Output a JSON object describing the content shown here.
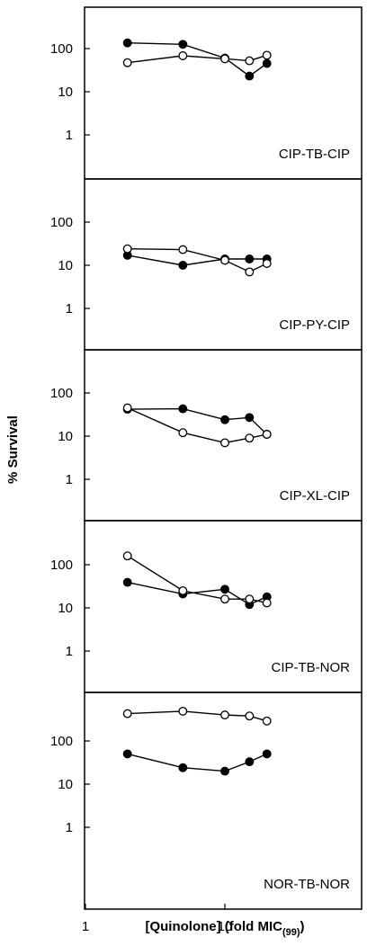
{
  "figure": {
    "ylabel": "% Survival",
    "xlabel_main": "[Quinolone] (fold MIC",
    "xlabel_sub": "(99)",
    "xlabel_close": ")",
    "x_ticks": [
      "1",
      "10"
    ],
    "y_ticks": [
      "1",
      "10",
      "100"
    ],
    "x_scale": "log",
    "y_scale": "log"
  },
  "chart_data": [
    {
      "type": "line",
      "label": "CIP-TB-CIP",
      "xlim": [
        1,
        50
      ],
      "ylim": [
        0.25,
        500
      ],
      "series": [
        {
          "marker": "filled",
          "x": [
            2,
            5,
            10,
            15,
            20
          ],
          "y": [
            135,
            125,
            60,
            23,
            45
          ]
        },
        {
          "marker": "open",
          "x": [
            2,
            5,
            10,
            15,
            20
          ],
          "y": [
            47,
            68,
            58,
            52,
            70
          ]
        }
      ]
    },
    {
      "type": "line",
      "label": "CIP-PY-CIP",
      "xlim": [
        1,
        50
      ],
      "ylim": [
        0.25,
        500
      ],
      "series": [
        {
          "marker": "filled",
          "x": [
            2,
            5,
            10,
            15,
            20
          ],
          "y": [
            17,
            10,
            14,
            14,
            14
          ]
        },
        {
          "marker": "open",
          "x": [
            2,
            5,
            10,
            15,
            20
          ],
          "y": [
            24,
            23,
            13,
            7,
            11
          ]
        }
      ]
    },
    {
      "type": "line",
      "label": "CIP-XL-CIP",
      "xlim": [
        1,
        50
      ],
      "ylim": [
        0.25,
        500
      ],
      "series": [
        {
          "marker": "filled",
          "x": [
            2,
            5,
            10,
            15,
            20
          ],
          "y": [
            42,
            43,
            24,
            27,
            11
          ]
        },
        {
          "marker": "open",
          "x": [
            2,
            5,
            10,
            15,
            20
          ],
          "y": [
            45,
            12,
            7,
            9,
            11
          ]
        }
      ]
    },
    {
      "type": "line",
      "label": "CIP-TB-NOR",
      "xlim": [
        1,
        50
      ],
      "ylim": [
        0.25,
        500
      ],
      "series": [
        {
          "marker": "filled",
          "x": [
            2,
            5,
            10,
            15,
            20
          ],
          "y": [
            39,
            21,
            27,
            12,
            18
          ]
        },
        {
          "marker": "open",
          "x": [
            2,
            5,
            10,
            15,
            20
          ],
          "y": [
            160,
            25,
            16,
            16,
            13
          ]
        }
      ]
    },
    {
      "type": "line",
      "label": "NOR-TB-NOR",
      "xlim": [
        1,
        50
      ],
      "ylim": [
        0.25,
        500
      ],
      "series": [
        {
          "marker": "filled",
          "x": [
            2,
            5,
            10,
            15,
            20
          ],
          "y": [
            50,
            24,
            20,
            33,
            50
          ]
        },
        {
          "marker": "open",
          "x": [
            2,
            5,
            10,
            15,
            20
          ],
          "y": [
            430,
            490,
            400,
            380,
            290
          ]
        }
      ]
    }
  ]
}
